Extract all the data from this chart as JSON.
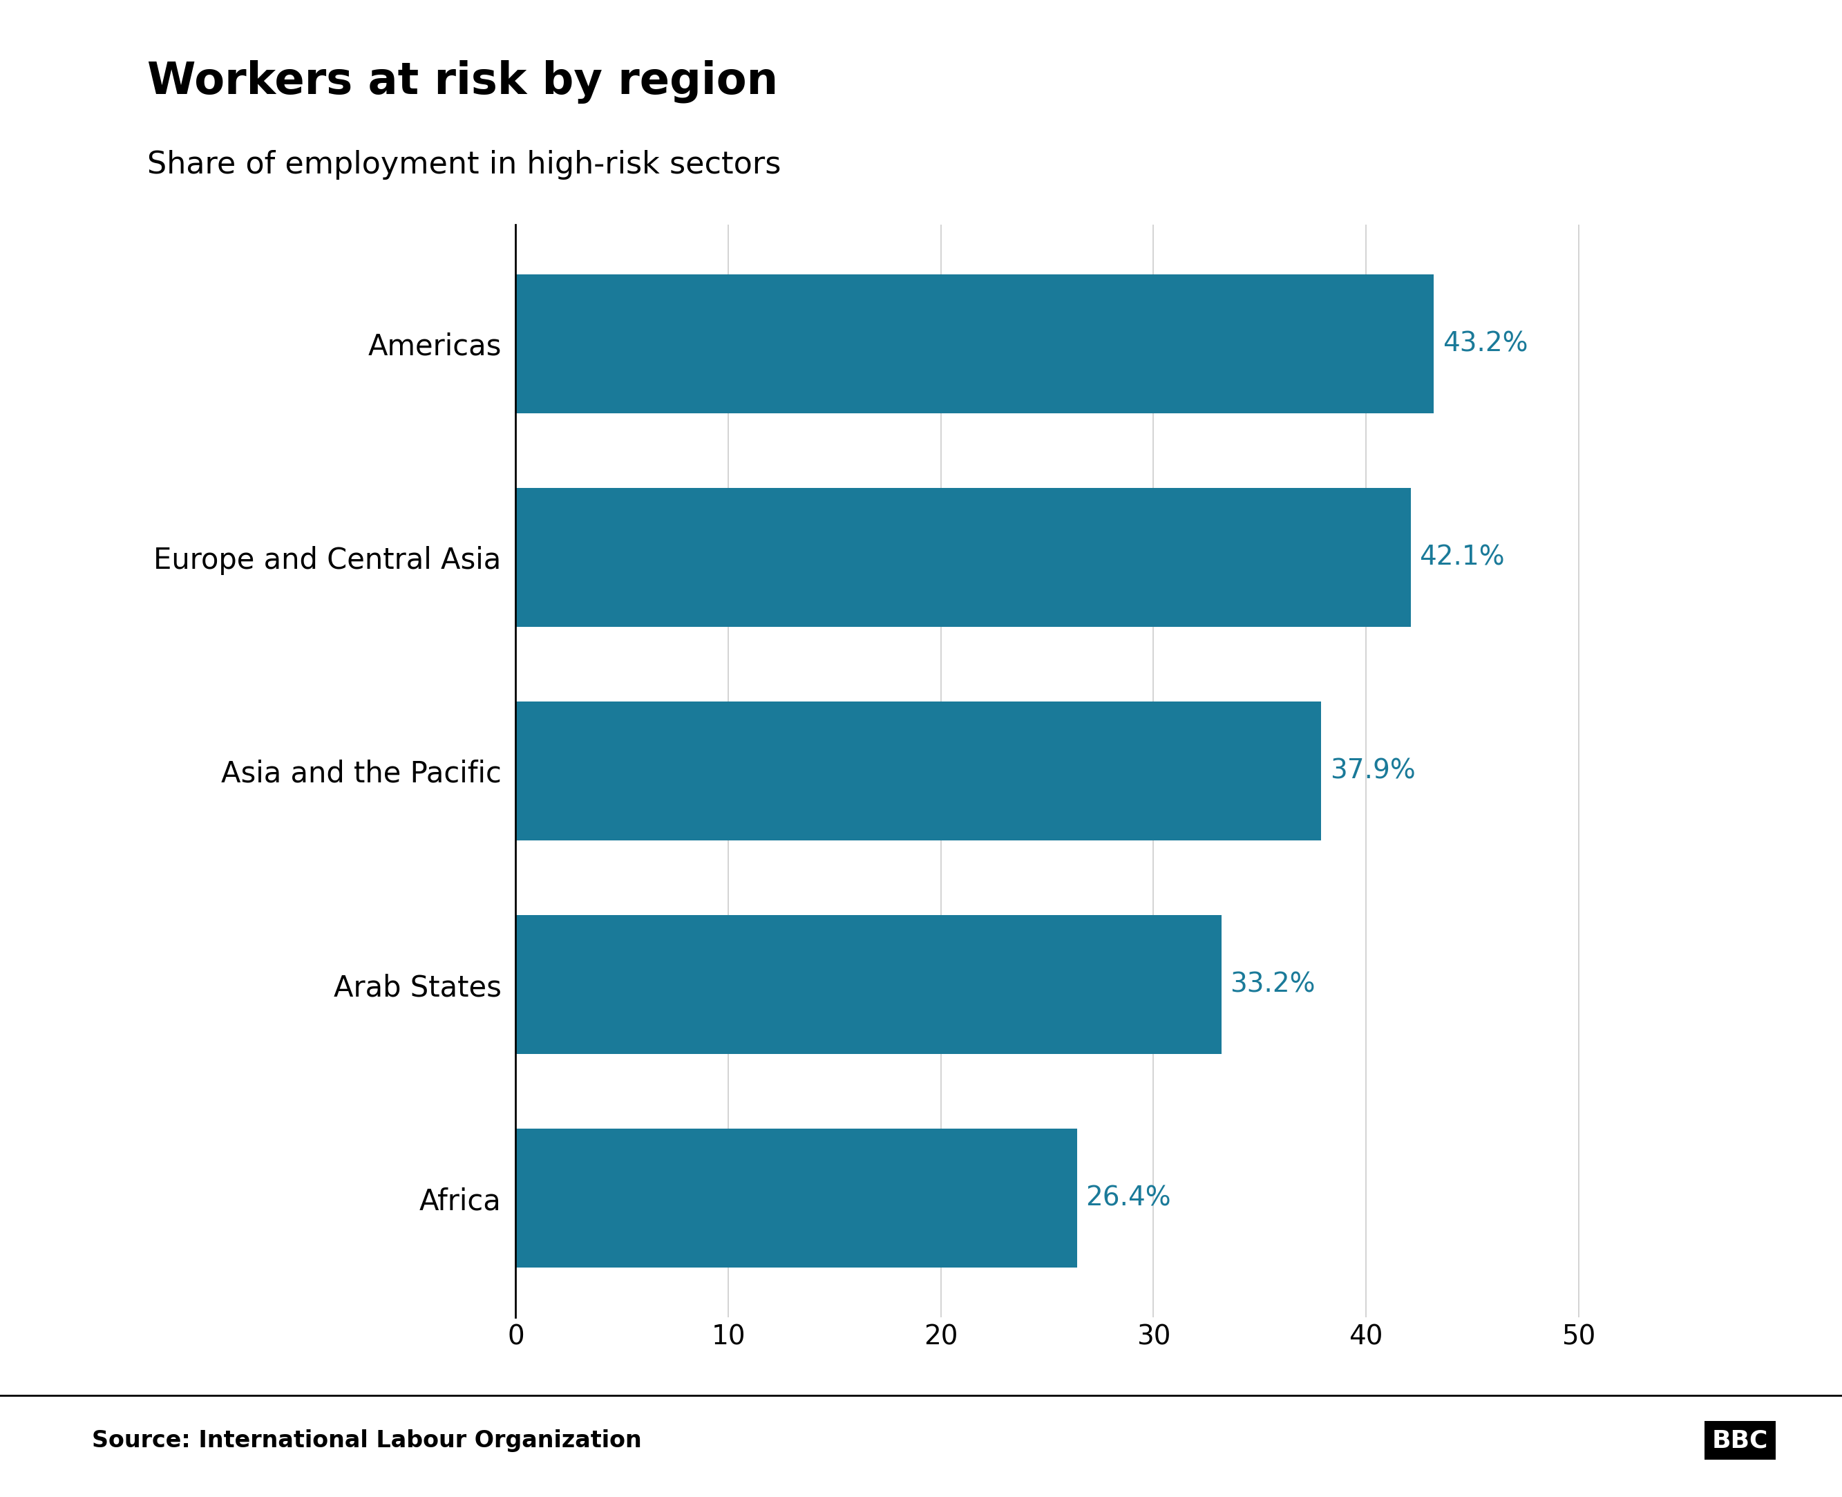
{
  "title": "Workers at risk by region",
  "subtitle": "Share of employment in high-risk sectors",
  "source": "Source: International Labour Organization",
  "categories": [
    "Africa",
    "Arab States",
    "Asia and the Pacific",
    "Europe and Central Asia",
    "Americas"
  ],
  "values": [
    26.4,
    33.2,
    37.9,
    42.1,
    43.2
  ],
  "bar_color": "#1a7a99",
  "label_color": "#1a7a99",
  "value_labels": [
    "26.4%",
    "33.2%",
    "37.9%",
    "42.1%",
    "43.2%"
  ],
  "xlim": [
    0,
    52
  ],
  "xticks": [
    0,
    10,
    20,
    30,
    40,
    50
  ],
  "title_fontsize": 46,
  "subtitle_fontsize": 32,
  "label_fontsize": 30,
  "tick_fontsize": 28,
  "value_fontsize": 28,
  "source_fontsize": 24,
  "bbc_fontsize": 26,
  "background_color": "#ffffff",
  "grid_color": "#cccccc",
  "bar_gap": 0.35
}
